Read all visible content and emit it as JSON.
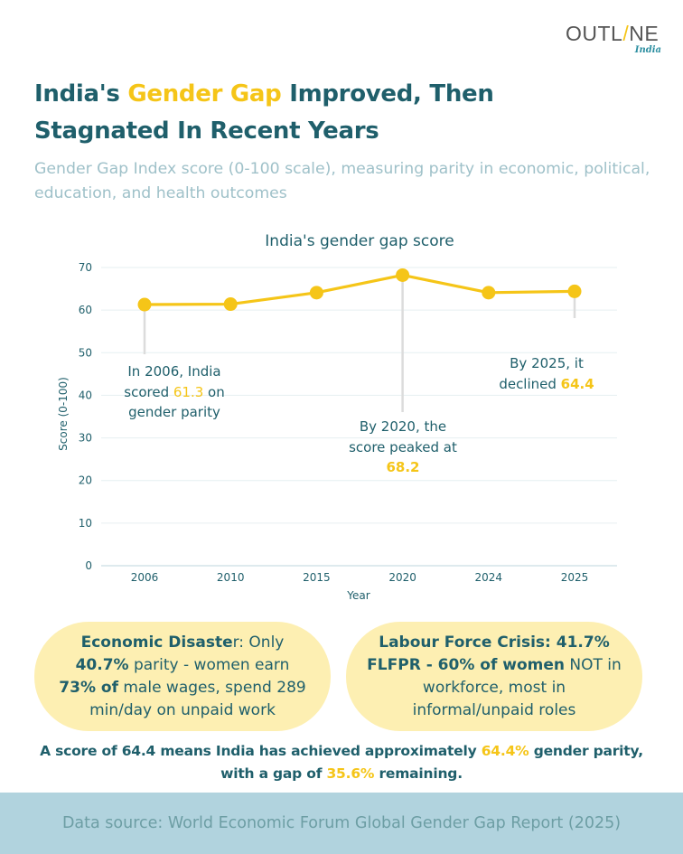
{
  "brand": {
    "logo_text_left": "OUTL",
    "logo_text_slash": "/",
    "logo_text_right": "NE",
    "logo_sub": "India"
  },
  "header": {
    "title_part1": "India's ",
    "title_highlight": "Gender Gap",
    "title_part2": " Improved, Then Stagnated In Recent Years",
    "subtitle": "Gender Gap Index score (0-100 scale), measuring parity in economic, political, education, and health outcomes"
  },
  "chart_data": {
    "type": "line",
    "title": "India's gender gap score",
    "xlabel": "Year",
    "ylabel": "Score (0-100)",
    "categories": [
      "2006",
      "2010",
      "2015",
      "2020",
      "2024",
      "2025"
    ],
    "series": [
      {
        "name": "India's gender gap score",
        "values": [
          61.3,
          61.4,
          64.1,
          68.2,
          64.1,
          64.4
        ]
      }
    ],
    "ylim": [
      0,
      70
    ],
    "yticks": [
      0,
      10,
      20,
      30,
      40,
      50,
      60,
      70
    ],
    "grid": true,
    "colors": {
      "line": "#f5c518",
      "grid": "#e6eff1",
      "axis": "#c9dde3",
      "text": "#1f5f6b",
      "leader": "#dcdcdc"
    },
    "annotations": [
      {
        "category": "2006",
        "line1": "In 2006, India",
        "line2_pre": "scored ",
        "line2_val": "61.3",
        "line2_post": " on",
        "line3": "gender parity"
      },
      {
        "category": "2020",
        "line1": "By 2020, the",
        "line2": "score peaked at",
        "line3_val": "68.2"
      },
      {
        "category": "2025",
        "line1": "By 2025, it",
        "line2_pre": "declined ",
        "line2_val": "64.4"
      }
    ]
  },
  "cards": [
    {
      "bold1": "Economic Disaste",
      "text1": "r: Only",
      "bold2": "40.7%",
      "text2": " parity - women earn",
      "bold3": "73% of",
      "text3": " male wages, spend 289 min/day on unpaid work"
    },
    {
      "bold1": "Labour Force Crisis: 41.7% FLFPR - 60% of women",
      "text1": " NOT in workforce, most in informal/unpaid roles"
    }
  ],
  "summary": {
    "part1": "A score of 64.4 means India has achieved approximately ",
    "hl1": "64.4%",
    "part2": " gender parity, with a gap of ",
    "hl2": "35.6%",
    "part3": " remaining."
  },
  "footer": {
    "source": "Data source: World Economic Forum Global Gender Gap Report (2025)"
  }
}
